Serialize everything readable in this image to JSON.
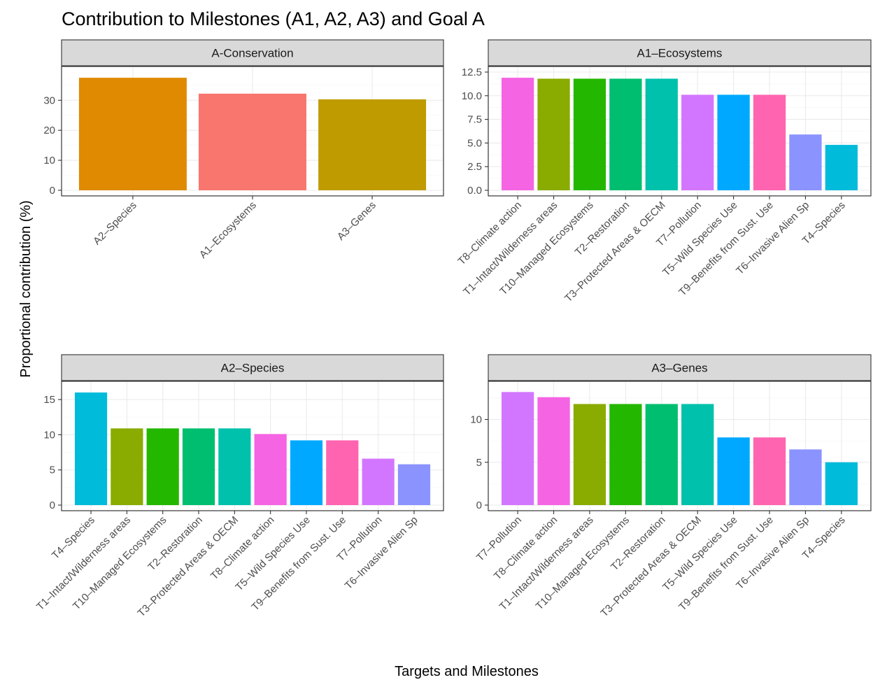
{
  "title": "Contribution to Milestones (A1, A2, A3) and Goal A",
  "xlabel": "Targets and Milestones",
  "ylabel": "Proportional contribution (%)",
  "colors": {
    "A2–Species": "#df8a00",
    "A1–Ecosystems": "#f8766d",
    "A3–Genes": "#bf9b00",
    "T8–Climate action": "#f564e3",
    "T1–Intact/Wilderness areas": "#8aab00",
    "T10–Managed Ecosystems": "#24b700",
    "T2–Restoration": "#00be70",
    "T3–Protected Areas & OECM": "#00c1ab",
    "T7–Pollution": "#d376ff",
    "T5–Wild Species Use": "#00a9ff",
    "T9–Benefits from Sust. Use": "#ff64b0",
    "T6–Invasive Alien Sp": "#8b93ff",
    "T4–Species": "#00bbda"
  },
  "chart_data": [
    {
      "type": "bar",
      "facet": "A-Conservation",
      "categories": [
        "A2–Species",
        "A1–Ecosystems",
        "A3–Genes"
      ],
      "values": [
        37.5,
        32.2,
        30.3
      ],
      "ylim": [
        0,
        39.4
      ],
      "yticks": [
        0,
        10,
        20,
        30
      ]
    },
    {
      "type": "bar",
      "facet": "A1–Ecosystems",
      "categories": [
        "T8–Climate action",
        "T1–Intact/Wilderness areas",
        "T10–Managed Ecosystems",
        "T2–Restoration",
        "T3–Protected Areas & OECM",
        "T7–Pollution",
        "T5–Wild Species Use",
        "T9–Benefits from Sust. Use",
        "T6–Invasive Alien Sp",
        "T4–Species"
      ],
      "values": [
        11.9,
        11.8,
        11.8,
        11.8,
        11.8,
        10.1,
        10.1,
        10.1,
        5.9,
        4.8
      ],
      "ylim": [
        0,
        12.5
      ],
      "yticks": [
        0.0,
        2.5,
        5.0,
        7.5,
        10.0,
        12.5
      ]
    },
    {
      "type": "bar",
      "facet": "A2–Species",
      "categories": [
        "T4–Species",
        "T1–Intact/Wilderness areas",
        "T10–Managed Ecosystems",
        "T2–Restoration",
        "T3–Protected Areas & OECM",
        "T8–Climate action",
        "T5–Wild Species Use",
        "T9–Benefits from Sust. Use",
        "T7–Pollution",
        "T6–Invasive Alien Sp"
      ],
      "values": [
        16.0,
        10.9,
        10.9,
        10.9,
        10.9,
        10.1,
        9.2,
        9.2,
        6.6,
        5.8
      ],
      "ylim": [
        0,
        16.8
      ],
      "yticks": [
        0,
        5,
        10,
        15
      ]
    },
    {
      "type": "bar",
      "facet": "A3–Genes",
      "categories": [
        "T7–Pollution",
        "T8–Climate action",
        "T1–Intact/Wilderness areas",
        "T10–Managed Ecosystems",
        "T2–Restoration",
        "T3–Protected Areas & OECM",
        "T5–Wild Species Use",
        "T9–Benefits from Sust. Use",
        "T6–Invasive Alien Sp",
        "T4–Species"
      ],
      "values": [
        13.2,
        12.6,
        11.8,
        11.8,
        11.8,
        11.8,
        7.9,
        7.9,
        6.5,
        5.0
      ],
      "ylim": [
        0,
        13.8
      ],
      "yticks": [
        0,
        5,
        10
      ]
    }
  ]
}
